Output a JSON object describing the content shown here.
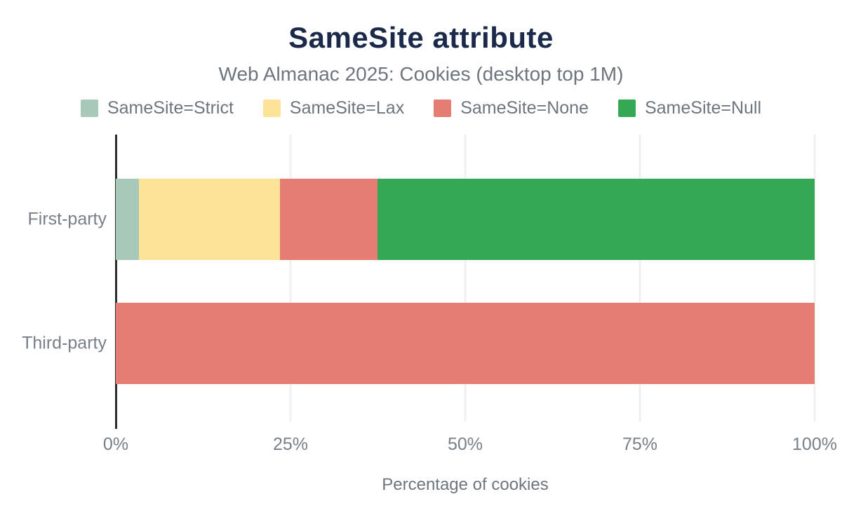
{
  "chart_data": {
    "type": "bar",
    "orientation": "horizontal",
    "stacked": true,
    "title": "SameSite attribute",
    "subtitle": "Web Almanac 2025: Cookies (desktop top 1M)",
    "xlabel": "Percentage of cookies",
    "categories": [
      "First-party",
      "Third-party"
    ],
    "series": [
      {
        "name": "SameSite=Strict",
        "color": "#a9c9b8",
        "values": [
          3.3,
          0
        ]
      },
      {
        "name": "SameSite=Lax",
        "color": "#fde397",
        "values": [
          20.2,
          0
        ]
      },
      {
        "name": "SameSite=None",
        "color": "#e57d73",
        "values": [
          14.0,
          100
        ]
      },
      {
        "name": "SameSite=Null",
        "color": "#34a853",
        "values": [
          62.5,
          0
        ]
      }
    ],
    "xlim": [
      0,
      100
    ],
    "x_ticks": [
      {
        "label": "0%",
        "pos": 0
      },
      {
        "label": "25%",
        "pos": 25
      },
      {
        "label": "50%",
        "pos": 50
      },
      {
        "label": "75%",
        "pos": 75
      },
      {
        "label": "100%",
        "pos": 100
      }
    ],
    "grid": true,
    "legend_position": "top"
  },
  "colors": {
    "title": "#1b2a4a",
    "subtitle_text": "#6e757e",
    "axis_text": "#797f88",
    "axis_line": "#2d2d2d",
    "gridline": "#f0f0f0",
    "background": "#ffffff"
  }
}
